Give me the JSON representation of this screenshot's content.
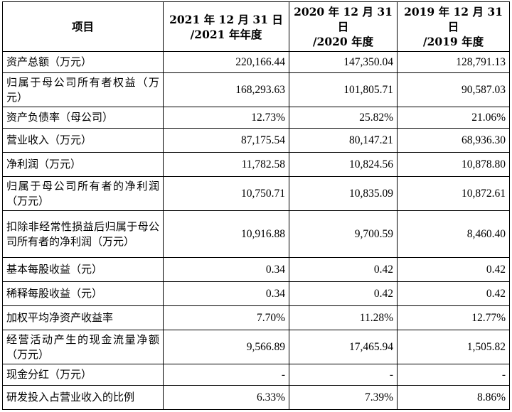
{
  "table": {
    "headers": [
      {
        "line1": "项目",
        "line2": ""
      },
      {
        "line1": "2021 年 12 月 31 日",
        "line2": "/2021 年年度"
      },
      {
        "line1": "2020 年 12 月 31 日",
        "line2": "/2020 年度"
      },
      {
        "line1": "2019 年 12 月 31 日",
        "line2": "/2019 年度"
      }
    ],
    "rows": [
      {
        "label": "资产总额（万元）",
        "v2021": "220,166.44",
        "v2020": "147,350.04",
        "v2019": "128,791.13"
      },
      {
        "label": "归属于母公司所有者权益（万元）",
        "v2021": "168,293.63",
        "v2020": "101,805.71",
        "v2019": "90,587.03"
      },
      {
        "label": "资产负债率（母公司）",
        "v2021": "12.73%",
        "v2020": "25.82%",
        "v2019": "21.06%"
      },
      {
        "label": "营业收入（万元）",
        "v2021": "87,175.54",
        "v2020": "80,147.21",
        "v2019": "68,936.30"
      },
      {
        "label": "净利润（万元）",
        "v2021": "11,782.58",
        "v2020": "10,824.56",
        "v2019": "10,878.80"
      },
      {
        "label": "归属于母公司所有者的净利润（万元）",
        "v2021": "10,750.71",
        "v2020": "10,835.09",
        "v2019": "10,872.61"
      },
      {
        "label": "扣除非经常性损益后归属于母公司所有者的净利润（万元）",
        "v2021": "10,916.88",
        "v2020": "9,700.59",
        "v2019": "8,460.40"
      },
      {
        "label": "基本每股收益（元）",
        "v2021": "0.34",
        "v2020": "0.42",
        "v2019": "0.42"
      },
      {
        "label": "稀释每股收益（元）",
        "v2021": "0.34",
        "v2020": "0.42",
        "v2019": "0.42"
      },
      {
        "label": "加权平均净资产收益率",
        "v2021": "7.70%",
        "v2020": "11.28%",
        "v2019": "12.77%"
      },
      {
        "label": "经营活动产生的现金流量净额（万元）",
        "v2021": "9,566.89",
        "v2020": "17,465.94",
        "v2019": "1,505.82"
      },
      {
        "label": "现金分红（万元）",
        "v2021": "-",
        "v2020": "-",
        "v2019": "-"
      },
      {
        "label": "研发投入占营业收入的比例",
        "v2021": "6.33%",
        "v2020": "7.39%",
        "v2019": "8.86%"
      }
    ]
  }
}
